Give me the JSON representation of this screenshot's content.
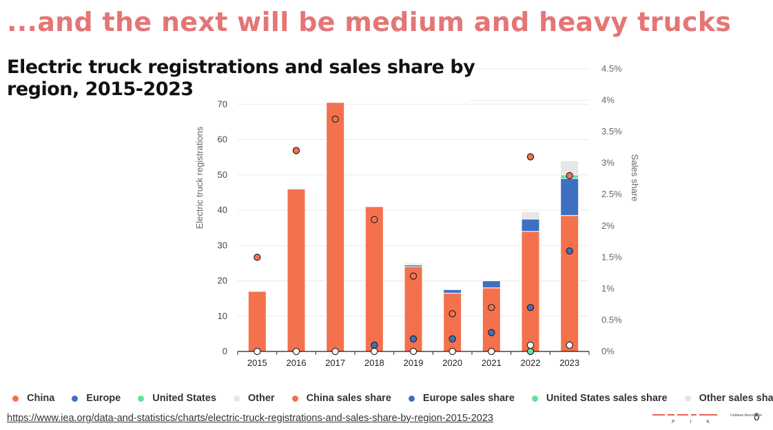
{
  "slide": {
    "title": "...and the next will be medium and heavy trucks",
    "source_url": "https://www.iea.org/data-and-statistics/charts/electric-truck-registrations-and-sales-share-by-region-2015-2023"
  },
  "logos": {
    "pik_letters": "P I K",
    "association_text": "Lindauer Association"
  },
  "legend": [
    {
      "label": "China",
      "color": "#f4714e"
    },
    {
      "label": "Europe",
      "color": "#3f6fc3"
    },
    {
      "label": "United States",
      "color": "#5ee39a"
    },
    {
      "label": "Other",
      "color": "#e6e6e6"
    },
    {
      "label": "China sales share",
      "color": "#f4714e"
    },
    {
      "label": "Europe sales share",
      "color": "#3f6fc3"
    },
    {
      "label": "United States sales share",
      "color": "#5ee39a"
    },
    {
      "label": "Other sales share",
      "color": "#e6e6e6"
    }
  ],
  "chart_data": {
    "type": "bar",
    "title": "Electric truck registrations and sales share by region, 2015-2023",
    "ylabel": "Electric truck registrations",
    "y2label": "Sales share",
    "stacked": true,
    "ylim": [
      0,
      80
    ],
    "y2lim": [
      0,
      4.5
    ],
    "yticks": [
      0,
      10,
      20,
      30,
      40,
      50,
      60,
      70
    ],
    "y2ticks": [
      "0%",
      "0.5%",
      "1%",
      "1.5%",
      "2%",
      "2.5%",
      "3%",
      "3.5%",
      "4%",
      "4.5%"
    ],
    "categories": [
      "2015",
      "2016",
      "2017",
      "2018",
      "2019",
      "2020",
      "2021",
      "2022",
      "2023"
    ],
    "grid": true,
    "legend_position": "bottom",
    "series": [
      {
        "name": "China",
        "axis": "left",
        "color": "#f4714e",
        "values": [
          17,
          46,
          70.5,
          41,
          24,
          16.5,
          18,
          34,
          38.5
        ]
      },
      {
        "name": "Europe",
        "axis": "left",
        "color": "#3f6fc3",
        "values": [
          0,
          0,
          0,
          0,
          0.5,
          1,
          2,
          3.5,
          10.5
        ]
      },
      {
        "name": "United States",
        "axis": "left",
        "color": "#5ee39a",
        "values": [
          0,
          0,
          0,
          0,
          0,
          0,
          0,
          0,
          1
        ]
      },
      {
        "name": "Other",
        "axis": "left",
        "color": "#e6e6e6",
        "values": [
          0,
          0,
          0,
          0,
          0.5,
          0,
          0,
          2,
          4
        ]
      }
    ],
    "share_series": [
      {
        "name": "China sales share",
        "axis": "right",
        "color": "#f4714e",
        "values": [
          1.5,
          3.2,
          3.7,
          2.1,
          1.2,
          0.6,
          0.7,
          3.1,
          2.8
        ]
      },
      {
        "name": "Europe sales share",
        "axis": "right",
        "color": "#3f6fc3",
        "values": [
          null,
          null,
          null,
          0.1,
          0.2,
          0.2,
          0.3,
          0.7,
          1.6
        ]
      },
      {
        "name": "United States sales share",
        "axis": "right",
        "color": "#5ee39a",
        "values": [
          null,
          null,
          null,
          null,
          null,
          null,
          null,
          0.0,
          null
        ]
      },
      {
        "name": "Other sales share",
        "axis": "right",
        "color": "#ffffff",
        "values": [
          0,
          0,
          0,
          0,
          0,
          0,
          0,
          0.1,
          0.1
        ]
      }
    ]
  }
}
